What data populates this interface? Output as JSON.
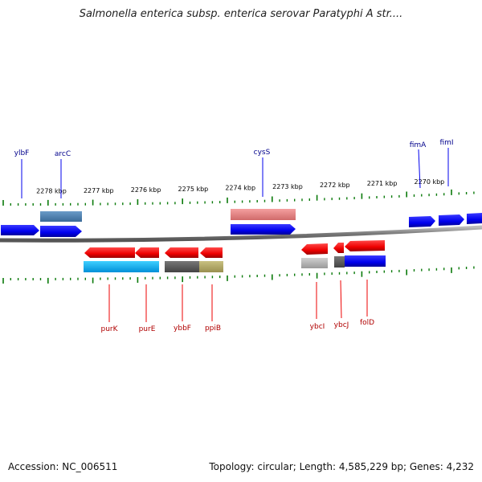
{
  "title": "Salmonella enterica subsp. enterica serovar Paratyphi A str....",
  "footer": {
    "accession": "Accession: NC_006511",
    "topology": "Topology: circular; Length: 4,585,229 bp; Genes: 4,232"
  },
  "colors": {
    "forward_cds": "#0000ee",
    "reverse_cds": "#ee0000",
    "forward_label": "#00008b",
    "reverse_label": "#b00000",
    "tick": "#0a7a0a",
    "backbone": "#8a8a8a"
  },
  "scale_labels": [
    "2278 kbp",
    "2277 kbp",
    "2276 kbp",
    "2275 kbp",
    "2274 kbp",
    "2273 kbp",
    "2272 kbp",
    "2271 kbp",
    "2270 kbp"
  ],
  "forward_genes": [
    "ylbF",
    "arcC",
    "cysS",
    "fimA",
    "fimI"
  ],
  "reverse_genes": [
    "purK",
    "purE",
    "ybbF",
    "ppiB",
    "ybcI",
    "ybcJ",
    "folD"
  ]
}
